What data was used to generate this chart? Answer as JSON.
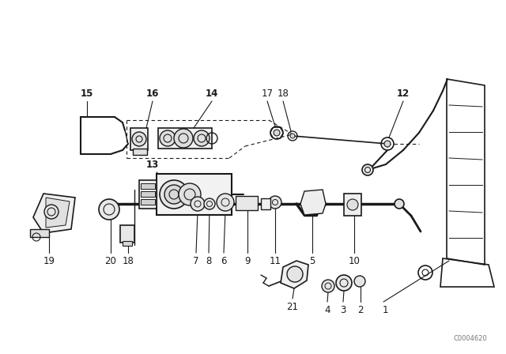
{
  "background_color": "#ffffff",
  "line_color": "#1a1a1a",
  "text_color": "#1a1a1a",
  "watermark": "C0004620",
  "fig_width": 6.4,
  "fig_height": 4.48,
  "dpi": 100
}
